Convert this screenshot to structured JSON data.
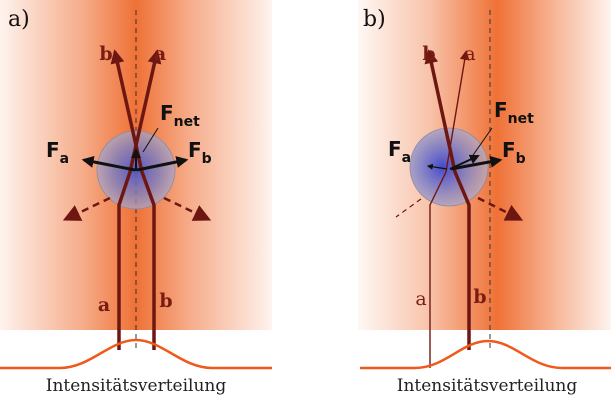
{
  "panels": [
    {
      "label": "a)",
      "ray_a": "a",
      "ray_b": "b",
      "force_a": {
        "main": "F",
        "sub": "a"
      },
      "force_b": {
        "main": "F",
        "sub": "b"
      },
      "force_net": {
        "main": "F",
        "sub": "net"
      },
      "caption": "Intensitätsverteilung"
    },
    {
      "label": "b)",
      "ray_a": "a",
      "ray_b": "b",
      "force_a": {
        "main": "F",
        "sub": "a"
      },
      "force_b": {
        "main": "F",
        "sub": "b"
      },
      "force_net": {
        "main": "F",
        "sub": "net"
      },
      "caption": "Intensitätsverteilung"
    }
  ],
  "colors": {
    "beam": "#ee6a2c",
    "ray": "#6e1712",
    "sphere": "#6f78c4",
    "profile": "#ee5a1c"
  }
}
